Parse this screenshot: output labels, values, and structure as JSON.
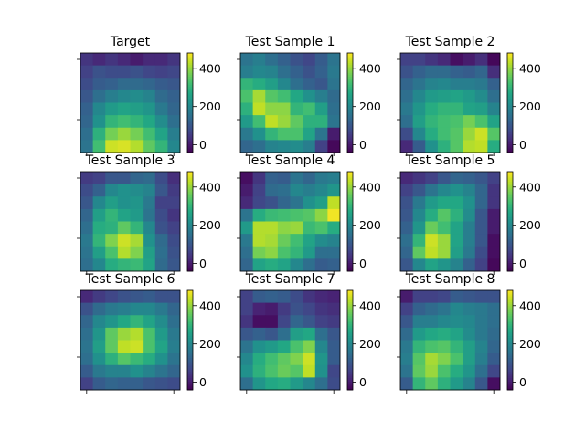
{
  "figure": {
    "background": "#ffffff"
  },
  "colormap": {
    "name": "viridis",
    "vmin": -40,
    "vmax": 480
  },
  "colorbar_ticks": [
    {
      "value": 0,
      "label": "0"
    },
    {
      "value": 200,
      "label": "200"
    },
    {
      "value": 400,
      "label": "400"
    }
  ],
  "chart_data": [
    {
      "type": "heatmap",
      "title": "Target",
      "grid": [
        [
          40,
          20,
          40,
          20,
          0,
          20,
          20,
          40
        ],
        [
          60,
          90,
          80,
          80,
          90,
          70,
          60,
          70
        ],
        [
          80,
          110,
          120,
          140,
          140,
          130,
          110,
          100
        ],
        [
          100,
          150,
          180,
          200,
          210,
          190,
          140,
          120
        ],
        [
          120,
          200,
          240,
          260,
          250,
          230,
          170,
          130
        ],
        [
          130,
          220,
          300,
          320,
          300,
          270,
          210,
          150
        ],
        [
          150,
          290,
          370,
          400,
          370,
          320,
          260,
          180
        ],
        [
          160,
          320,
          440,
          450,
          420,
          350,
          300,
          200
        ]
      ]
    },
    {
      "type": "heatmap",
      "title": "Test Sample 1",
      "grid": [
        [
          160,
          180,
          150,
          120,
          90,
          70,
          110,
          160
        ],
        [
          180,
          200,
          190,
          150,
          120,
          90,
          120,
          170
        ],
        [
          300,
          280,
          250,
          200,
          150,
          120,
          100,
          160
        ],
        [
          330,
          410,
          340,
          320,
          270,
          220,
          180,
          140
        ],
        [
          290,
          430,
          390,
          390,
          300,
          320,
          250,
          150
        ],
        [
          240,
          320,
          430,
          400,
          350,
          290,
          290,
          160
        ],
        [
          170,
          220,
          300,
          330,
          330,
          260,
          160,
          0
        ],
        [
          130,
          150,
          190,
          200,
          210,
          180,
          60,
          -30
        ]
      ]
    },
    {
      "type": "heatmap",
      "title": "Test Sample 2",
      "grid": [
        [
          60,
          60,
          40,
          20,
          -20,
          0,
          30,
          -30
        ],
        [
          90,
          120,
          140,
          140,
          120,
          110,
          130,
          30
        ],
        [
          130,
          160,
          190,
          200,
          180,
          180,
          170,
          120
        ],
        [
          150,
          200,
          240,
          250,
          260,
          240,
          210,
          150
        ],
        [
          170,
          230,
          280,
          300,
          300,
          260,
          250,
          190
        ],
        [
          150,
          250,
          300,
          320,
          330,
          370,
          330,
          260
        ],
        [
          80,
          200,
          280,
          320,
          340,
          400,
          440,
          340
        ],
        [
          20,
          110,
          220,
          290,
          340,
          420,
          430,
          280
        ]
      ]
    },
    {
      "type": "heatmap",
      "title": "Test Sample 3",
      "grid": [
        [
          50,
          60,
          100,
          100,
          130,
          140,
          80,
          30
        ],
        [
          80,
          120,
          200,
          220,
          210,
          190,
          100,
          50
        ],
        [
          100,
          200,
          250,
          220,
          230,
          170,
          60,
          60
        ],
        [
          130,
          250,
          300,
          260,
          240,
          160,
          80,
          40
        ],
        [
          150,
          280,
          290,
          350,
          300,
          200,
          90,
          60
        ],
        [
          170,
          300,
          380,
          440,
          410,
          220,
          140,
          80
        ],
        [
          160,
          250,
          330,
          420,
          380,
          250,
          150,
          90
        ],
        [
          150,
          200,
          280,
          300,
          310,
          260,
          140,
          100
        ]
      ]
    },
    {
      "type": "heatmap",
      "title": "Test Sample 4",
      "grid": [
        [
          -20,
          40,
          120,
          110,
          160,
          130,
          170,
          180
        ],
        [
          0,
          60,
          140,
          150,
          200,
          180,
          200,
          230
        ],
        [
          20,
          70,
          90,
          130,
          160,
          220,
          250,
          430
        ],
        [
          160,
          280,
          310,
          320,
          330,
          340,
          390,
          470
        ],
        [
          240,
          420,
          420,
          390,
          400,
          310,
          330,
          280
        ],
        [
          170,
          420,
          410,
          360,
          320,
          260,
          210,
          190
        ],
        [
          150,
          370,
          390,
          330,
          300,
          240,
          150,
          150
        ],
        [
          130,
          260,
          280,
          260,
          200,
          150,
          110,
          120
        ]
      ]
    },
    {
      "type": "heatmap",
      "title": "Test Sample 5",
      "grid": [
        [
          20,
          40,
          60,
          100,
          130,
          120,
          100,
          60
        ],
        [
          60,
          100,
          160,
          200,
          220,
          190,
          130,
          40
        ],
        [
          90,
          170,
          240,
          270,
          270,
          220,
          130,
          40
        ],
        [
          100,
          200,
          280,
          340,
          290,
          210,
          100,
          0
        ],
        [
          120,
          230,
          360,
          320,
          260,
          180,
          100,
          0
        ],
        [
          150,
          300,
          440,
          400,
          260,
          180,
          100,
          -20
        ],
        [
          130,
          350,
          430,
          400,
          250,
          170,
          80,
          -20
        ],
        [
          100,
          200,
          260,
          230,
          190,
          120,
          60,
          -30
        ]
      ]
    },
    {
      "type": "heatmap",
      "title": "Test Sample 6",
      "grid": [
        [
          20,
          50,
          70,
          90,
          100,
          110,
          90,
          90
        ],
        [
          90,
          140,
          170,
          180,
          200,
          200,
          170,
          130
        ],
        [
          130,
          200,
          230,
          270,
          300,
          260,
          210,
          150
        ],
        [
          150,
          230,
          350,
          400,
          420,
          330,
          240,
          170
        ],
        [
          160,
          250,
          350,
          430,
          440,
          330,
          260,
          180
        ],
        [
          150,
          220,
          290,
          340,
          310,
          280,
          220,
          160
        ],
        [
          110,
          170,
          190,
          190,
          220,
          190,
          160,
          130
        ],
        [
          60,
          110,
          130,
          120,
          120,
          100,
          90,
          80
        ]
      ]
    },
    {
      "type": "heatmap",
      "title": "Test Sample 7",
      "grid": [
        [
          60,
          110,
          120,
          110,
          80,
          40,
          20,
          10
        ],
        [
          60,
          10,
          0,
          50,
          90,
          70,
          40,
          30
        ],
        [
          40,
          -20,
          -20,
          70,
          130,
          100,
          60,
          50
        ],
        [
          100,
          120,
          100,
          150,
          250,
          270,
          150,
          100
        ],
        [
          160,
          220,
          240,
          270,
          330,
          380,
          200,
          110
        ],
        [
          200,
          280,
          320,
          350,
          380,
          440,
          230,
          110
        ],
        [
          220,
          290,
          330,
          360,
          340,
          430,
          220,
          70
        ],
        [
          150,
          230,
          270,
          280,
          240,
          200,
          150,
          80
        ]
      ]
    },
    {
      "type": "heatmap",
      "title": "Test Sample 8",
      "grid": [
        [
          0,
          60,
          60,
          70,
          110,
          100,
          90,
          90
        ],
        [
          60,
          120,
          140,
          160,
          200,
          180,
          170,
          150
        ],
        [
          100,
          180,
          180,
          200,
          210,
          200,
          170,
          150
        ],
        [
          140,
          240,
          270,
          280,
          260,
          210,
          170,
          140
        ],
        [
          170,
          300,
          330,
          340,
          300,
          250,
          190,
          130
        ],
        [
          180,
          340,
          410,
          380,
          330,
          250,
          180,
          110
        ],
        [
          160,
          350,
          400,
          330,
          280,
          230,
          150,
          70
        ],
        [
          110,
          300,
          350,
          290,
          240,
          190,
          100,
          -20
        ]
      ]
    }
  ]
}
